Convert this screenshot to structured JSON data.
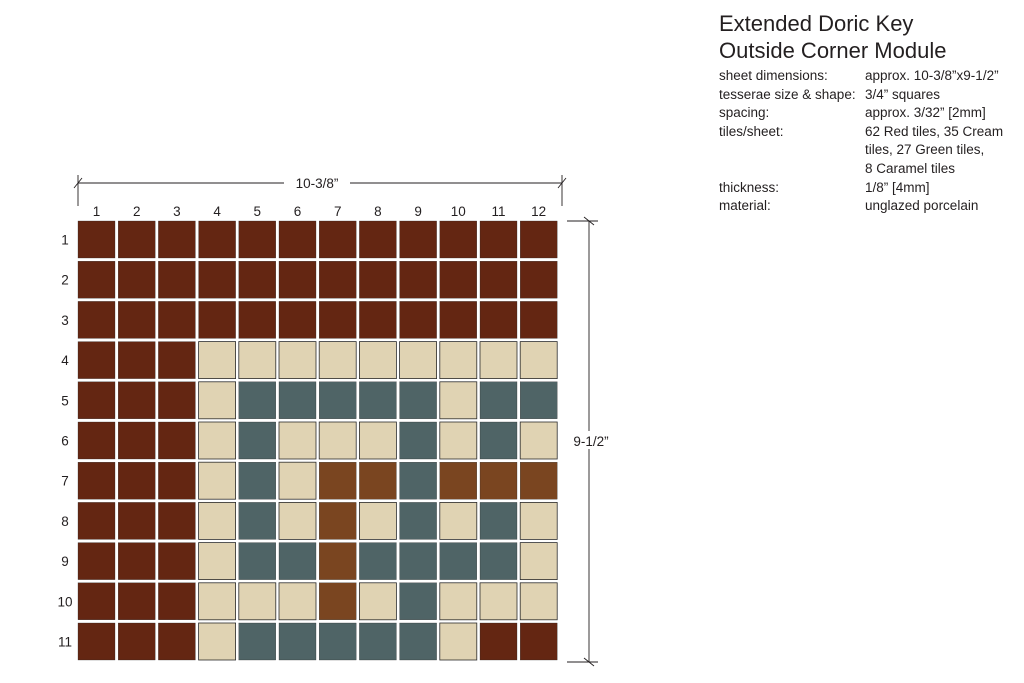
{
  "title": {
    "line1": "Extended Doric Key",
    "line2": "Outside Corner Module"
  },
  "specs": [
    {
      "label": "sheet dimensions:",
      "lines": [
        "approx. 10-3/8”x9-1/2”"
      ]
    },
    {
      "label": "tesserae size & shape:",
      "lines": [
        "3/4” squares"
      ]
    },
    {
      "label": "spacing:",
      "lines": [
        "approx. 3/32” [2mm]"
      ]
    },
    {
      "label": "tiles/sheet:",
      "lines": [
        "62 Red tiles, 35 Cream",
        "tiles, 27 Green tiles,",
        "8 Caramel tiles"
      ]
    },
    {
      "label": "thickness:",
      "lines": [
        "1/8” [4mm]"
      ]
    },
    {
      "label": "material:",
      "lines": [
        "unglazed porcelain"
      ]
    }
  ],
  "dimensions": {
    "width": "10-3/8”",
    "height": "9-1/2”"
  },
  "columns": [
    "1",
    "2",
    "3",
    "4",
    "5",
    "6",
    "7",
    "8",
    "9",
    "10",
    "11",
    "12"
  ],
  "rows": [
    "1",
    "2",
    "3",
    "4",
    "5",
    "6",
    "7",
    "8",
    "9",
    "10",
    "11"
  ],
  "colors": {
    "R": "#642612",
    "C": "#e0d3b3",
    "G": "#4f6466",
    "K": "#7a4520"
  },
  "grid": [
    "RRRRRRRRRRRR",
    "RRRRRRRRRRRR",
    "RRRRRRRRRRRR",
    "RRRCCCCCCCCC",
    "RRRCGGGGGCGG",
    "RRRCGCCCGCGC",
    "RRRCGCKKGKKK",
    "RRRCGCKCGCGC",
    "RRRCGGKGGGGC",
    "RRRCCCKCGCCC",
    "RRRCGGGGGCRR"
  ]
}
